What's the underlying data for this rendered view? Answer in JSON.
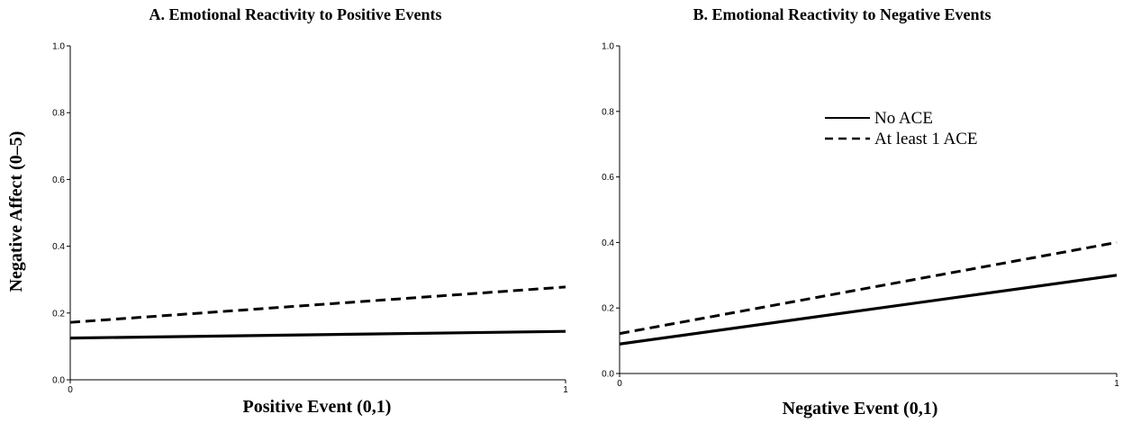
{
  "chart_data": [
    {
      "type": "line",
      "title": "A. Emotional Reactivity to Positive Events",
      "xlabel": "Positive Event (0,1)",
      "ylabel": "Negative Affect (0–5)",
      "xlim": [
        0,
        1
      ],
      "ylim": [
        0,
        1
      ],
      "x_ticks": [
        "0",
        "1"
      ],
      "y_ticks": [
        "0.0",
        "0.2",
        "0.4",
        "0.6",
        "0.8",
        "1.0"
      ],
      "grid": false,
      "series": [
        {
          "name": "No ACE",
          "style": "solid",
          "x": [
            0,
            1
          ],
          "y": [
            0.125,
            0.145
          ]
        },
        {
          "name": "At least 1 ACE",
          "style": "dashed",
          "x": [
            0,
            1
          ],
          "y": [
            0.172,
            0.278
          ]
        }
      ]
    },
    {
      "type": "line",
      "title": "B. Emotional Reactivity to Negative Events",
      "xlabel": "Negative Event (0,1)",
      "ylabel": "",
      "xlim": [
        0,
        1
      ],
      "ylim": [
        0,
        1
      ],
      "x_ticks": [
        "0",
        "1"
      ],
      "y_ticks": [
        "0.0",
        "0.2",
        "0.4",
        "0.6",
        "0.8",
        "1.0"
      ],
      "grid": false,
      "legend": {
        "placement": "upper-right",
        "entries": [
          {
            "label": "No ACE",
            "style": "solid"
          },
          {
            "label": "At least 1 ACE",
            "style": "dashed"
          }
        ]
      },
      "series": [
        {
          "name": "No ACE",
          "style": "solid",
          "x": [
            0,
            1
          ],
          "y": [
            0.09,
            0.3
          ]
        },
        {
          "name": "At least 1 ACE",
          "style": "dashed",
          "x": [
            0,
            1
          ],
          "y": [
            0.122,
            0.4
          ]
        }
      ]
    }
  ]
}
